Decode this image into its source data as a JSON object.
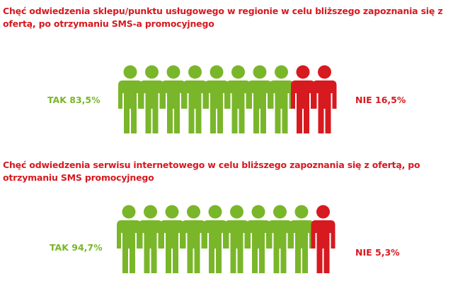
{
  "colors": {
    "yes": "#7ab62a",
    "no": "#d71920"
  },
  "chart_data": [
    {
      "type": "pictogram",
      "title": "Chęć odwiedzenia sklepu/punktu usługowego w regionie w celu bliższego zapoznania się z ofertą, po otrzymaniu SMS-a promocyjnego",
      "icon": "person-icon",
      "icon_count": 10,
      "yes": {
        "label": "TAK 83,5%",
        "value": 83.5,
        "icons": 8
      },
      "no": {
        "label": "NIE 16,5%",
        "value": 16.5,
        "icons": 2
      }
    },
    {
      "type": "pictogram",
      "title": "Chęć odwiedzenia serwisu internetowego w celu bliższego zapoznania się z ofertą, po otrzymaniu SMS promocyjnego",
      "icon": "person-icon",
      "icon_count": 10,
      "yes": {
        "label": "TAK 94,7%",
        "value": 94.7,
        "icons": 9
      },
      "no": {
        "label": "NIE 5,3%",
        "value": 5.3,
        "icons": 1
      }
    }
  ]
}
